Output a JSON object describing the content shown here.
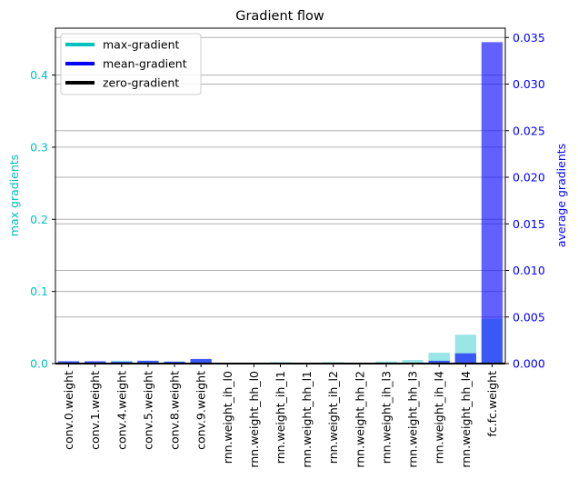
{
  "chart_data": {
    "type": "bar",
    "title": "Gradient flow",
    "categories": [
      "conv.0.weight",
      "conv.1.weight",
      "conv.4.weight",
      "conv.5.weight",
      "conv.8.weight",
      "conv.9.weight",
      "rnn.weight_ih_l0",
      "rnn.weight_hh_l0",
      "rnn.weight_ih_l1",
      "rnn.weight_hh_l1",
      "rnn.weight_ih_l2",
      "rnn.weight_hh_l2",
      "rnn.weight_ih_l3",
      "rnn.weight_hh_l3",
      "rnn.weight_ih_l4",
      "rnn.weight_hh_l4",
      "fc.fc.weight"
    ],
    "series": [
      {
        "name": "max-gradient",
        "axis": "left",
        "color": "#00c0c0",
        "values": [
          0.003,
          0.003,
          0.004,
          0.004,
          0.003,
          0.006,
          0.001,
          0.0005,
          0.002,
          0.0005,
          0.002,
          0.001,
          0.003,
          0.005,
          0.015,
          0.04,
          0.062
        ]
      },
      {
        "name": "mean-gradient",
        "axis": "right",
        "color": "#0000ff",
        "values": [
          0.00025,
          0.00025,
          0.0002,
          0.0003,
          0.0002,
          0.0005,
          3e-05,
          1e-05,
          3e-05,
          1e-05,
          3e-05,
          2e-05,
          5e-05,
          0.0001,
          0.0003,
          0.0011,
          0.0345
        ]
      }
    ],
    "legend": {
      "placement": "top-left",
      "entries": [
        {
          "label": "max-gradient",
          "color": "#00c0c0"
        },
        {
          "label": "mean-gradient",
          "color": "#0000ff"
        },
        {
          "label": "zero-gradient",
          "color": "#000000"
        }
      ]
    },
    "y_left": {
      "label": "max gradients",
      "ylim": [
        0,
        0.465
      ],
      "ticks": [
        0.0,
        0.1,
        0.2,
        0.3,
        0.4
      ],
      "tick_labels": [
        "0.0",
        "0.1",
        "0.2",
        "0.3",
        "0.4"
      ],
      "color": "#00c0c0"
    },
    "y_right": {
      "label": "average gradients",
      "ylim": [
        0,
        0.036
      ],
      "ticks": [
        0.0,
        0.005,
        0.01,
        0.015,
        0.02,
        0.025,
        0.03,
        0.035
      ],
      "tick_labels": [
        "0.000",
        "0.005",
        "0.010",
        "0.015",
        "0.020",
        "0.025",
        "0.030",
        "0.035"
      ],
      "color": "#0000ff"
    },
    "grid": "horizontal"
  }
}
